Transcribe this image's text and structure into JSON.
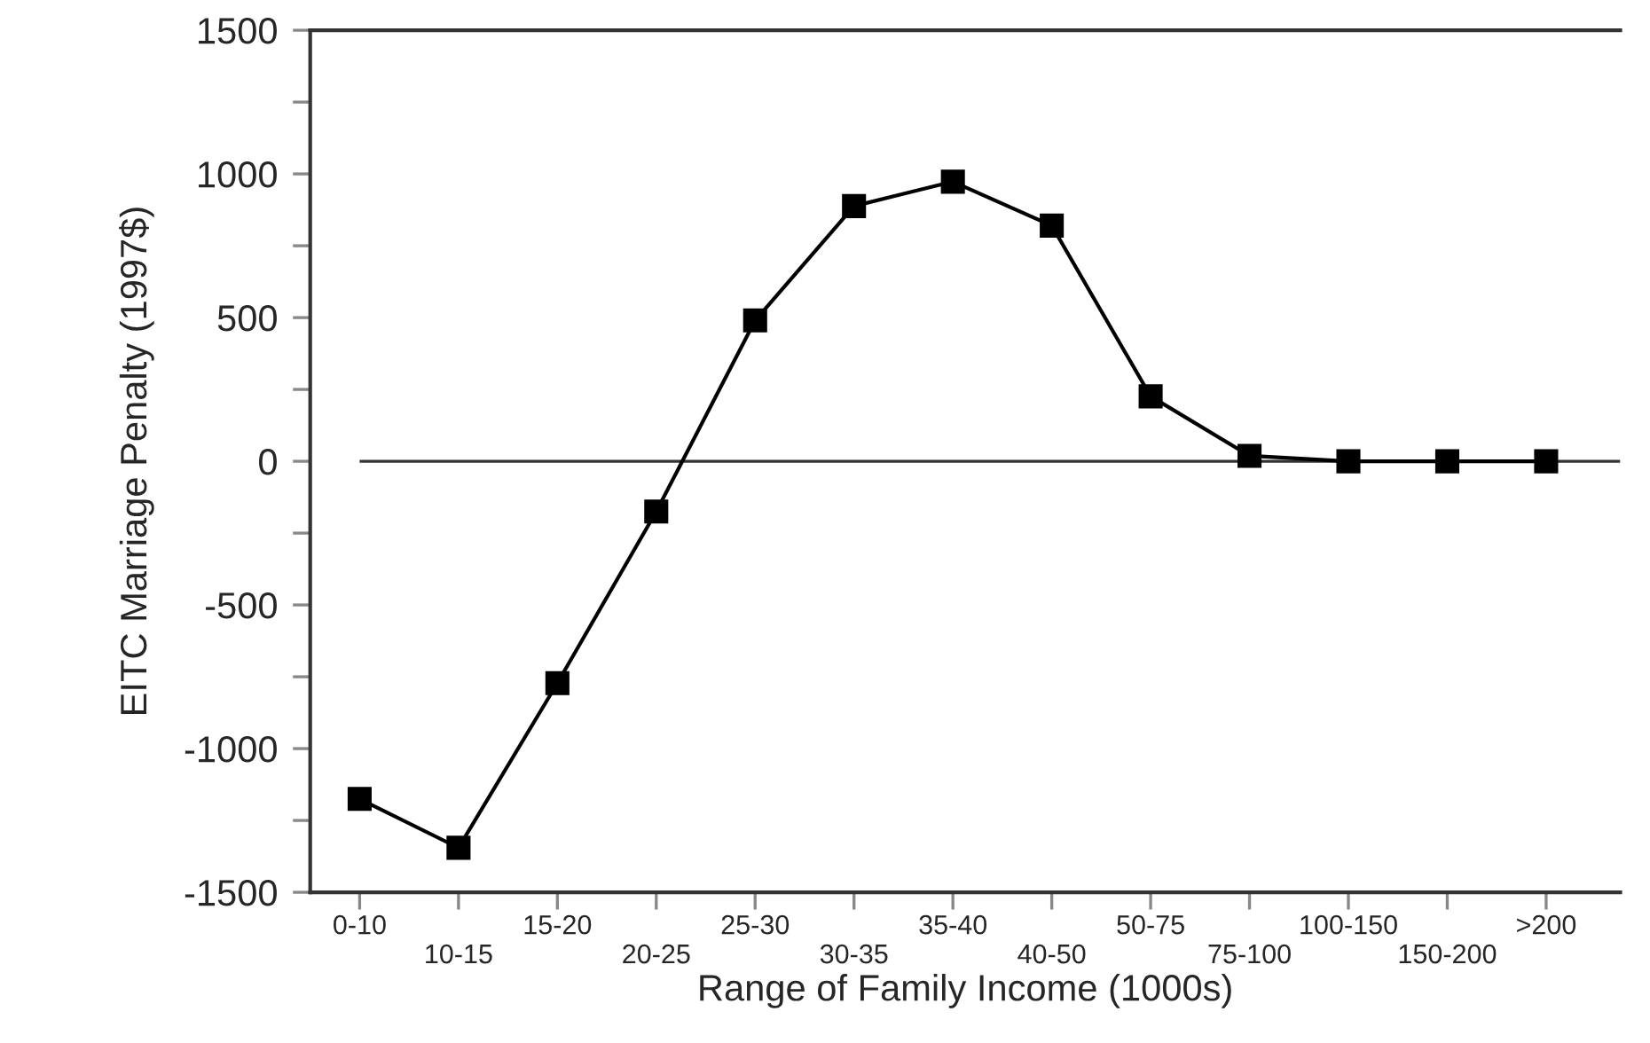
{
  "chart_data": {
    "type": "line",
    "xlabel": "Range of Family Income (1000s)",
    "ylabel": "EITC Marriage Penalty (1997$)",
    "categories": [
      "0-10",
      "10-15",
      "15-20",
      "20-25",
      "25-30",
      "30-35",
      "35-40",
      "40-50",
      "50-75",
      "75-100",
      "100-150",
      "150-200",
      ">200"
    ],
    "series": [
      {
        "color": "#000000",
        "values": [
          -1175,
          -1345,
          -772,
          -175,
          490,
          888,
          973,
          820,
          226,
          19,
          0,
          0,
          0
        ]
      }
    ],
    "ylim": [
      -1500,
      1500
    ],
    "yticks": [
      -1500,
      {
        "value": -1250,
        "label": null
      },
      -1000,
      {
        "value": -750,
        "label": null
      },
      -500,
      {
        "value": -250,
        "label": null
      },
      0,
      {
        "value": 250,
        "label": null
      },
      500,
      {
        "value": 750,
        "label": null
      },
      1000,
      {
        "value": 1250,
        "label": null
      },
      1500
    ],
    "ref_lines": [
      {
        "axis": "y",
        "value": 0,
        "color": "#333333"
      }
    ],
    "marker": "square",
    "line_style": "solid",
    "grid": false,
    "legend": false
  }
}
